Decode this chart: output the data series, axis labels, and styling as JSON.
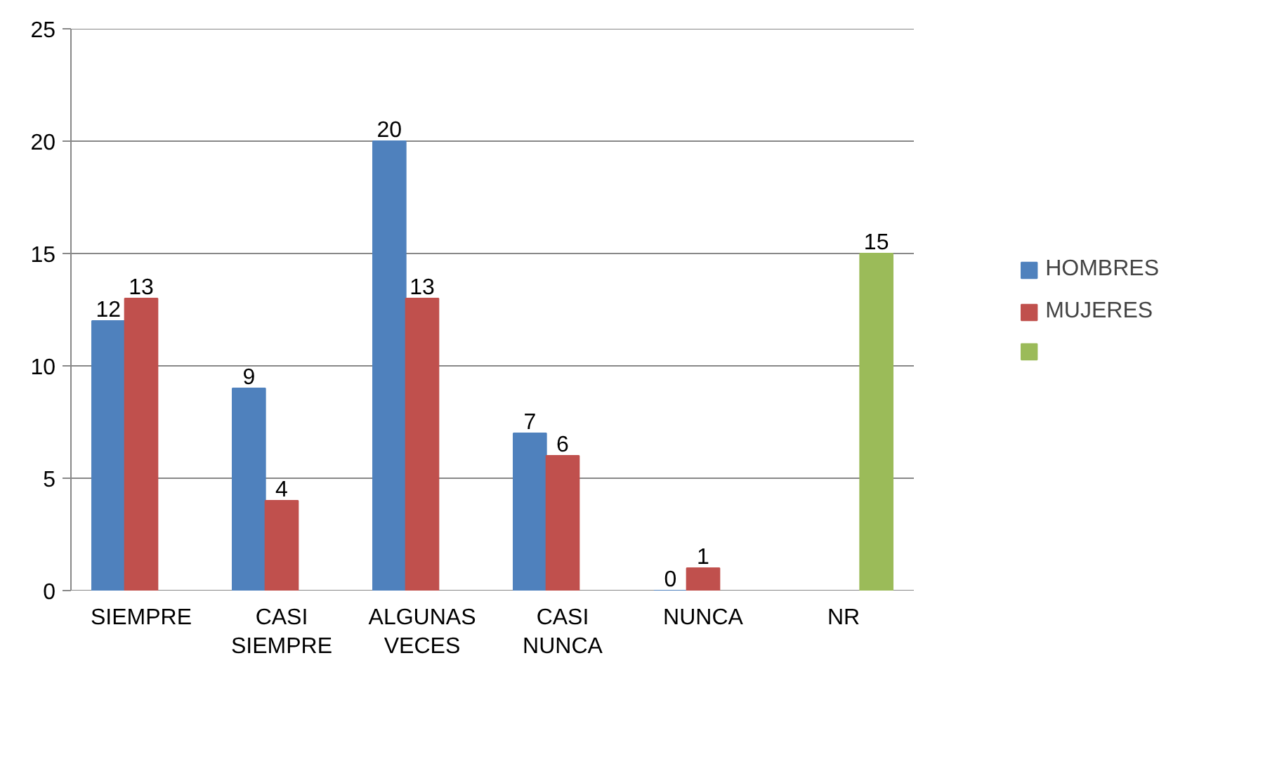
{
  "chart_data": {
    "type": "bar",
    "categories": [
      "SIEMPRE",
      "CASI\nSIEMPRE",
      "ALGUNAS\nVECES",
      "CASI\nNUNCA",
      "NUNCA",
      "NR"
    ],
    "series": [
      {
        "name": "HOMBRES",
        "color": "#4f81bd",
        "values": [
          12,
          9,
          20,
          7,
          0,
          null
        ]
      },
      {
        "name": "MUJERES",
        "color": "#c0504d",
        "values": [
          13,
          4,
          13,
          6,
          1,
          null
        ]
      },
      {
        "color": "#9bbb59",
        "values": [
          null,
          null,
          null,
          null,
          null,
          15
        ]
      }
    ],
    "ylim": [
      0,
      25
    ],
    "yticks": [
      0,
      5,
      10,
      15,
      20,
      25
    ],
    "grid": "y",
    "legend": "right",
    "data_labels": true
  }
}
